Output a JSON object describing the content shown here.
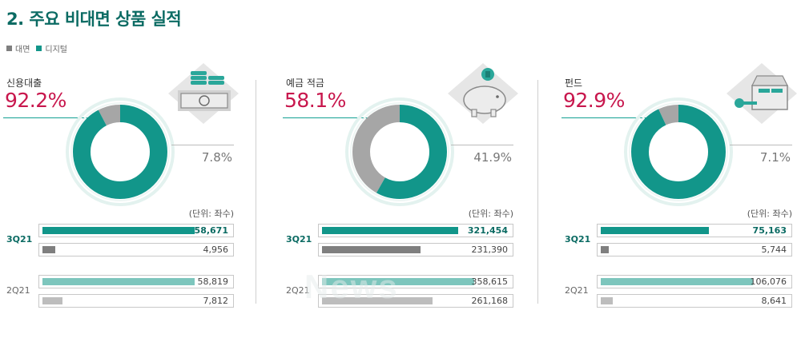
{
  "title": "2. 주요 비대면 상품 실적",
  "legend": [
    {
      "label": "대면",
      "color": "#7f7f7f"
    },
    {
      "label": "디지털",
      "color": "#12968a"
    }
  ],
  "colors": {
    "digital_cur": "#12968a",
    "digital_prev": "#7dc6bd",
    "face_cur": "#7f7f7f",
    "face_prev": "#bdbdbd",
    "donut_digital": "#12968a",
    "donut_face": "#a6a6a6",
    "accent_pct": "#c8174d"
  },
  "chart_data": [
    {
      "type": "bar",
      "product": "신용대출",
      "digital_share": "92.2%",
      "face_share": "7.8%",
      "donut": {
        "digital": 92.2,
        "face": 7.8
      },
      "unit": "(단위: 좌수)",
      "categories": [
        "3Q21",
        "2Q21"
      ],
      "series": [
        {
          "name": "디지털",
          "values": [
            58671,
            58819
          ],
          "labels": [
            "58,671",
            "58,819"
          ]
        },
        {
          "name": "대면",
          "values": [
            4956,
            7812
          ],
          "labels": [
            "4,956",
            "7,812"
          ]
        }
      ],
      "icon": "money-stack-icon"
    },
    {
      "type": "bar",
      "product": "예금 적금",
      "digital_share": "58.1%",
      "face_share": "41.9%",
      "donut": {
        "digital": 58.1,
        "face": 41.9
      },
      "unit": "(단위: 좌수)",
      "categories": [
        "3Q21",
        "2Q21"
      ],
      "series": [
        {
          "name": "디지털",
          "values": [
            321454,
            358615
          ],
          "labels": [
            "321,454",
            "358,615"
          ]
        },
        {
          "name": "대면",
          "values": [
            231390,
            261168
          ],
          "labels": [
            "231,390",
            "261,168"
          ]
        }
      ],
      "icon": "piggy-bank-icon"
    },
    {
      "type": "bar",
      "product": "펀드",
      "digital_share": "92.9%",
      "face_share": "7.1%",
      "donut": {
        "digital": 92.9,
        "face": 7.1
      },
      "unit": "(단위: 좌수)",
      "categories": [
        "3Q21",
        "2Q21"
      ],
      "series": [
        {
          "name": "디지털",
          "values": [
            75163,
            106076
          ],
          "labels": [
            "75,163",
            "106,076"
          ]
        },
        {
          "name": "대면",
          "values": [
            5744,
            8641
          ],
          "labels": [
            "5,744",
            "8,641"
          ]
        }
      ],
      "icon": "treasure-chest-key-icon"
    }
  ]
}
